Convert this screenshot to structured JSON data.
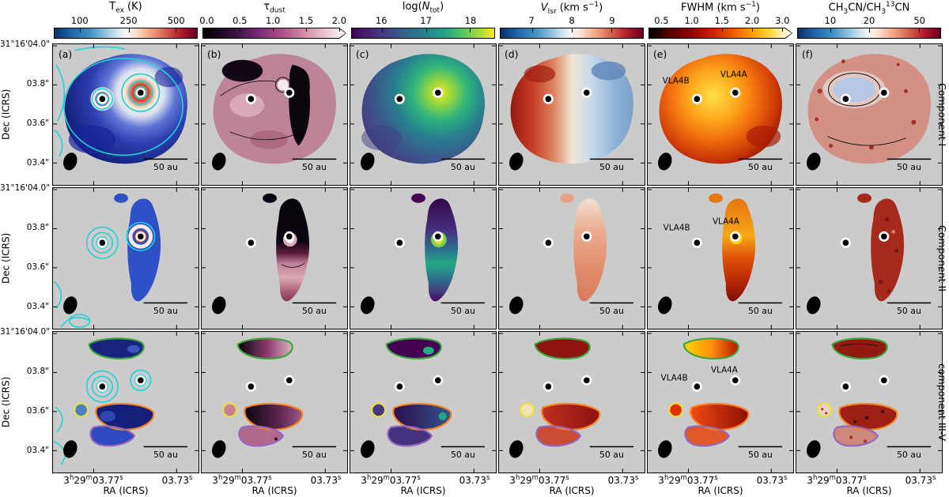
{
  "chart_data": {
    "type": "heatmap",
    "grid": {
      "rows": [
        "Component I",
        "Component II",
        "component III-V"
      ],
      "columns": [
        "(a) Tex (K)",
        "(b) tau_dust",
        "(c) log(N_tot)",
        "(d) Vlsr (km/s)",
        "(e) FWHM (km/s)",
        "(f) CH3CN/CH3(13)CN"
      ]
    },
    "colorbars": [
      {
        "panel": "(a)",
        "quantity": "Tex (K)",
        "tick_values": [
          100,
          250,
          500
        ],
        "scale": "log",
        "colormap": "blue-white-red"
      },
      {
        "panel": "(b)",
        "quantity": "tau_dust",
        "tick_values": [
          0.0,
          0.5,
          1.0,
          1.5,
          2.0
        ],
        "scale": "linear",
        "colormap": "black-purple-pink-white",
        "extended_max": true
      },
      {
        "panel": "(c)",
        "quantity": "log(N_tot)",
        "tick_values": [
          16,
          17,
          18
        ],
        "scale": "linear",
        "colormap": "viridis"
      },
      {
        "panel": "(d)",
        "quantity": "Vlsr (km/s)",
        "tick_values": [
          7,
          8,
          9
        ],
        "scale": "linear",
        "colormap": "blue-white-red"
      },
      {
        "panel": "(e)",
        "quantity": "FWHM (km/s)",
        "tick_values": [
          0.5,
          1.0,
          1.5,
          2.0,
          3.0
        ],
        "scale": "log",
        "colormap": "black-red-yellow-white",
        "extended_max": true
      },
      {
        "panel": "(f)",
        "quantity": "CH3CN/CH3(13)CN",
        "tick_values": [
          10,
          20,
          50
        ],
        "scale": "log",
        "colormap": "blue-white-red"
      }
    ],
    "axes": {
      "x": "RA (ICRS)",
      "x_tick_labels": [
        "3h29m03.77s",
        "03.73s"
      ],
      "y": "Dec (ICRS)",
      "y_tick_labels": [
        "31°16'04.0\"",
        "03.8\"",
        "03.6\"",
        "03.4\""
      ]
    },
    "annotations": {
      "sources": [
        "VLA4A",
        "VLA4B"
      ],
      "scale_bar": "50 au",
      "panel_labels": [
        "(a)",
        "(b)",
        "(c)",
        "(d)",
        "(e)",
        "(f)"
      ],
      "row_labels": [
        "Component I",
        "Component II",
        "component III-V"
      ],
      "contours": "cyan continuum contours in column (a); green/yellow/orange/purple component outlines in bottom row"
    }
  },
  "colorbars": [
    {
      "title": "T<sub>ex</sub> (K)",
      "ticks": [
        "100",
        "250",
        "500"
      ]
    },
    {
      "title": "τ<sub>dust</sub>",
      "ticks": [
        "0.0",
        "0.5",
        "1.0",
        "1.5",
        "2.0"
      ]
    },
    {
      "title": "log(<i>N</i><sub>tot</sub>)",
      "ticks": [
        "16",
        "17",
        "18"
      ]
    },
    {
      "title": "<i>V</i><sub>lsr</sub> (km s<sup>−1</sup>)",
      "ticks": [
        "7",
        "8",
        "9"
      ]
    },
    {
      "title": "FWHM (km s<sup>−1</sup>)",
      "ticks": [
        "0.5",
        "1.0",
        "1.5",
        "2.0",
        "3.0"
      ]
    },
    {
      "title": "CH<sub>3</sub>CN/CH<sub>3</sub><sup>13</sup>CN",
      "ticks": [
        "10",
        "20",
        "50"
      ]
    }
  ],
  "axes": {
    "y_label": "Dec (ICRS)",
    "x_label": "RA (ICRS)",
    "y_ticks": [
      "31°16'04.0\"",
      "03.8\"",
      "03.6\"",
      "03.4\""
    ],
    "x_ticks": [
      "3<sup>h</sup>29<sup>m</sup>03.77<sup>s</sup>",
      "03.73<sup>s</sup>"
    ]
  },
  "rows": [
    {
      "label": "Component I"
    },
    {
      "label": "Component II"
    },
    {
      "label": "component III-V"
    }
  ],
  "panels": {
    "letters": [
      "(a)",
      "(b)",
      "(c)",
      "(d)",
      "(e)",
      "(f)"
    ],
    "scale": "50 au",
    "vla4a": "VLA4A",
    "vla4b": "VLA4B"
  }
}
